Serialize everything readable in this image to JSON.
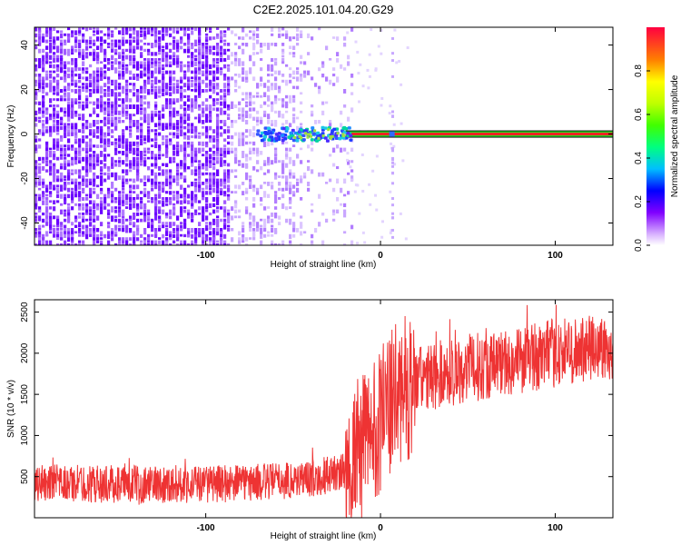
{
  "title": "C2E2.2025.101.04.20.G29",
  "chart_data": [
    {
      "type": "heatmap",
      "xlabel": "Height of straight line (km)",
      "ylabel": "Frequency (Hz)",
      "xlim": [
        -198,
        133
      ],
      "ylim": [
        -50,
        48
      ],
      "xticks": [
        -100,
        0,
        100
      ],
      "xticklabels": [
        "-100",
        "0",
        "100"
      ],
      "yticks": [
        -40,
        -20,
        0,
        20,
        40
      ],
      "yticklabels": [
        "-40",
        "-20",
        "0",
        "20",
        "40"
      ],
      "colorbar": {
        "label": "Normalized spectral amplitude",
        "range": [
          0,
          1
        ],
        "ticks": [
          0.0,
          0.2,
          0.4,
          0.6,
          0.8
        ],
        "ticklabels": [
          "0.0",
          "0.2",
          "0.4",
          "0.6",
          "0.8"
        ],
        "colormap": "rainbow"
      },
      "noise_region": {
        "x": [
          -198,
          -20
        ],
        "y": [
          -50,
          48
        ],
        "amplitude": 0.1
      },
      "signal_line": {
        "x": [
          -20,
          133
        ],
        "frequency": 0,
        "amplitude": 0.9
      },
      "signal_cluster": {
        "x": [
          -72,
          -18
        ],
        "frequency": 0,
        "amplitude": 0.35
      }
    },
    {
      "type": "line",
      "xlabel": "Height of straight line (km)",
      "ylabel": "SNR (10 * v/v)",
      "xlim": [
        -198,
        133
      ],
      "ylim": [
        0,
        2650
      ],
      "xticks": [
        -100,
        0,
        100
      ],
      "xticklabels": [
        "-100",
        "0",
        "100"
      ],
      "yticks": [
        500,
        1000,
        1500,
        2000,
        2500
      ],
      "yticklabels": [
        "500",
        "1000",
        "1500",
        "2000",
        "2500"
      ],
      "series_color": "#ee3333",
      "trend": {
        "x": [
          -198,
          -150,
          -100,
          -70,
          -40,
          -20,
          -10,
          0,
          10,
          20,
          40,
          60,
          80,
          100,
          120,
          133
        ],
        "y": [
          420,
          410,
          410,
          430,
          480,
          560,
          900,
          1200,
          1500,
          1650,
          1780,
          1850,
          1920,
          2000,
          2050,
          2080
        ]
      }
    }
  ]
}
